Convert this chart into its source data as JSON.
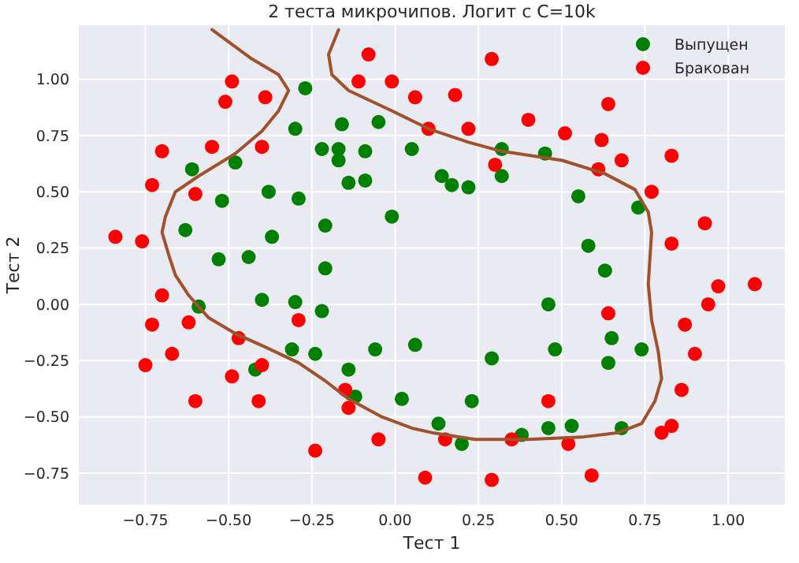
{
  "chart_data": {
    "type": "scatter",
    "title": "2 теста микрочипов. Логит с C=10k",
    "xlabel": "Тест 1",
    "ylabel": "Тест 2",
    "xlim": [
      -0.95,
      1.17
    ],
    "ylim": [
      -0.89,
      1.24
    ],
    "xticks": [
      {
        "value": -0.75,
        "label": "−0.75"
      },
      {
        "value": -0.5,
        "label": "−0.50"
      },
      {
        "value": -0.25,
        "label": "−0.25"
      },
      {
        "value": 0,
        "label": "0.00"
      },
      {
        "value": 0.25,
        "label": "0.25"
      },
      {
        "value": 0.5,
        "label": "0.50"
      },
      {
        "value": 0.75,
        "label": "0.75"
      },
      {
        "value": 1,
        "label": "1.00"
      }
    ],
    "yticks": [
      {
        "value": -0.75,
        "label": "−0.75"
      },
      {
        "value": -0.5,
        "label": "−0.50"
      },
      {
        "value": -0.25,
        "label": "−0.25"
      },
      {
        "value": 0,
        "label": "0.00"
      },
      {
        "value": 0.25,
        "label": "0.25"
      },
      {
        "value": 0.5,
        "label": "0.50"
      },
      {
        "value": 0.75,
        "label": "0.75"
      },
      {
        "value": 1,
        "label": "1.00"
      }
    ],
    "grid": true,
    "legend": "top right",
    "series": [
      {
        "marker": "circle",
        "name": "Выпущен",
        "color": "#008000",
        "x": [
          -0.27,
          -0.16,
          -0.3,
          -0.05,
          -0.22,
          -0.17,
          -0.17,
          -0.09,
          0.05,
          -0.48,
          -0.61,
          -0.14,
          -0.09,
          -0.38,
          -0.29,
          -0.52,
          -0.21,
          -0.01,
          -0.63,
          -0.37,
          -0.53,
          -0.44,
          -0.21,
          0.32,
          0.45,
          0.14,
          0.17,
          0.22,
          0.32,
          0.55,
          0.73,
          0.58,
          0.63,
          -0.59,
          -0.4,
          -0.3,
          -0.22,
          -0.31,
          -0.24,
          -0.06,
          0.06,
          -0.42,
          -0.14,
          -0.12,
          0.02,
          0.46,
          0.65,
          0.48,
          0.74,
          0.29,
          0.64,
          0.23,
          0.13,
          0.46,
          0.53,
          0.38,
          0.2,
          0.68
        ],
        "values": [
          0.96,
          0.8,
          0.78,
          0.81,
          0.69,
          0.69,
          0.64,
          0.68,
          0.69,
          0.63,
          0.6,
          0.54,
          0.55,
          0.5,
          0.47,
          0.46,
          0.35,
          0.39,
          0.33,
          0.3,
          0.2,
          0.21,
          0.16,
          0.69,
          0.67,
          0.57,
          0.53,
          0.52,
          0.57,
          0.48,
          0.43,
          0.26,
          0.15,
          -0.01,
          0.02,
          0.01,
          -0.03,
          -0.2,
          -0.22,
          -0.2,
          -0.18,
          -0.29,
          -0.29,
          -0.41,
          -0.42,
          0,
          -0.15,
          -0.2,
          -0.2,
          -0.24,
          -0.26,
          -0.43,
          -0.53,
          -0.55,
          -0.54,
          -0.58,
          -0.62,
          -0.55
        ]
      },
      {
        "marker": "circle",
        "name": "Бракован",
        "color": "#ff0000",
        "x": [
          -0.08,
          -0.49,
          -0.11,
          -0.01,
          -0.51,
          -0.39,
          0.06,
          0.1,
          -0.7,
          -0.55,
          -0.4,
          -0.73,
          -0.6,
          -0.84,
          -0.76,
          0.29,
          0.18,
          0.22,
          0.4,
          0.64,
          0.51,
          0.62,
          0.68,
          0.83,
          0.3,
          0.61,
          0.77,
          0.93,
          0.83,
          -0.7,
          -0.73,
          -0.62,
          -0.29,
          -0.67,
          -0.47,
          -0.75,
          -0.4,
          -0.49,
          -0.6,
          -0.41,
          -0.15,
          -0.14,
          -0.05,
          -0.24,
          0.09,
          0.97,
          1.08,
          0.94,
          0.64,
          0.87,
          0.9,
          0.86,
          0.46,
          0.15,
          0.35,
          0.52,
          0.8,
          0.83,
          0.29,
          0.59
        ],
        "values": [
          1.11,
          0.99,
          0.99,
          0.99,
          0.9,
          0.92,
          0.92,
          0.78,
          0.68,
          0.7,
          0.7,
          0.53,
          0.49,
          0.3,
          0.28,
          1.09,
          0.93,
          0.78,
          0.82,
          0.89,
          0.76,
          0.73,
          0.64,
          0.66,
          0.62,
          0.6,
          0.5,
          0.36,
          0.27,
          0.04,
          -0.09,
          -0.08,
          -0.07,
          -0.22,
          -0.15,
          -0.27,
          -0.27,
          -0.32,
          -0.43,
          -0.43,
          -0.38,
          -0.46,
          -0.6,
          -0.65,
          -0.77,
          0.08,
          0.09,
          0,
          -0.04,
          -0.09,
          -0.22,
          -0.38,
          -0.43,
          -0.6,
          -0.6,
          -0.62,
          -0.57,
          -0.54,
          -0.78,
          -0.76
        ]
      },
      {
        "type": "line",
        "color": "#a0522d",
        "x": [
          -0.55,
          -0.43,
          -0.35,
          -0.32,
          -0.35,
          -0.4,
          -0.48,
          -0.59,
          -0.66,
          -0.69,
          -0.7,
          -0.68,
          -0.66,
          -0.62,
          -0.56,
          -0.48,
          -0.39,
          -0.29,
          -0.21,
          -0.14,
          -0.04,
          0.05,
          0.11,
          0.24,
          0.4,
          0.56,
          0.67,
          0.74,
          0.78,
          0.8,
          0.79,
          0.77,
          0.76,
          0.77,
          0.76,
          0.72,
          0.63,
          0.5,
          0.32,
          0.22,
          0.1,
          -0.01,
          -0.14,
          -0.19,
          -0.2,
          -0.17
        ],
        "values": [
          1.22,
          1.09,
          1.02,
          0.95,
          0.86,
          0.77,
          0.67,
          0.57,
          0.5,
          0.39,
          0.32,
          0.22,
          0.13,
          0.04,
          -0.06,
          -0.13,
          -0.19,
          -0.26,
          -0.34,
          -0.42,
          -0.5,
          -0.55,
          -0.57,
          -0.6,
          -0.6,
          -0.59,
          -0.57,
          -0.53,
          -0.43,
          -0.33,
          -0.21,
          -0.07,
          0.09,
          0.32,
          0.41,
          0.51,
          0.58,
          0.64,
          0.68,
          0.72,
          0.78,
          0.86,
          0.95,
          1.02,
          1.11,
          1.22
        ]
      }
    ]
  }
}
